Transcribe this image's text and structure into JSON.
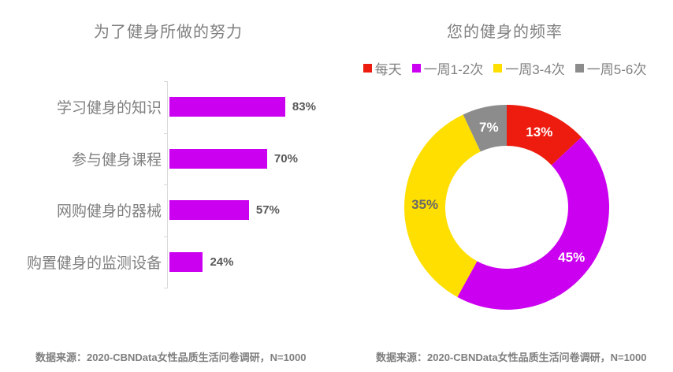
{
  "page": {
    "background": "#ffffff"
  },
  "chart_data": [
    {
      "type": "bar",
      "orientation": "horizontal",
      "title": "为了健身所做的努力",
      "categories": [
        "学习健身的知识",
        "参与健身课程",
        "网购健身的器械",
        "购置健身的监测设备"
      ],
      "values": [
        83,
        70,
        57,
        24
      ],
      "value_labels": [
        "83%",
        "70%",
        "57%",
        "24%"
      ],
      "unit": "%",
      "xlim": [
        0,
        100
      ],
      "bar_color": "#cc00f0",
      "grid": false,
      "axis_color": "#d9d9d9",
      "source_note": "数据来源：2020-CBNData女性品质生活问卷调研，N=1000"
    },
    {
      "type": "pie",
      "subtype": "donut",
      "title": "您的健身的频率",
      "labels": [
        "每天",
        "一周1-2次",
        "一周3-4次",
        "一周5-6次"
      ],
      "values": [
        13,
        45,
        35,
        7
      ],
      "value_labels": [
        "13%",
        "45%",
        "35%",
        "7%"
      ],
      "colors": [
        "#ed1c0f",
        "#cc00f0",
        "#ffdf00",
        "#8c8c8c"
      ],
      "slice_label_colors": [
        "#ffffff",
        "#ffffff",
        "#696969",
        "#ffffff"
      ],
      "start_angle_deg": 0,
      "direction": "clockwise",
      "legend_position": "top",
      "source_note": "数据来源：2020-CBNData女性品质生活问卷调研，N=1000"
    }
  ],
  "colors": {
    "accent_magenta": "#cc00f0",
    "accent_red": "#ed1c0f",
    "accent_yellow": "#ffdf00",
    "accent_gray": "#8c8c8c",
    "text_gray": "#7f7f7f",
    "value_text": "#595959"
  }
}
